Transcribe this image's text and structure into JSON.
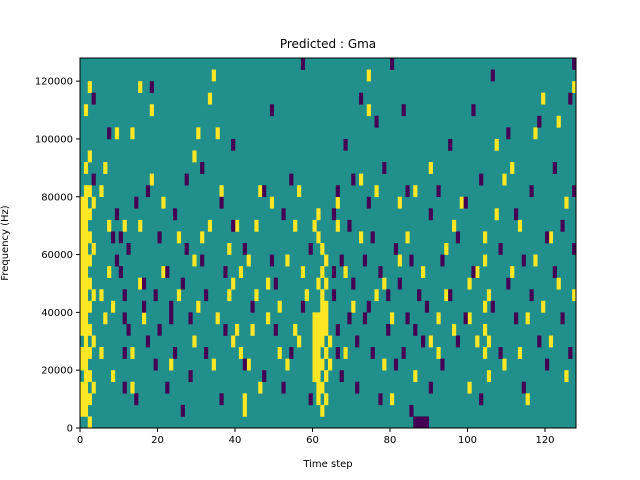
{
  "chart_data": {
    "type": "heatmap",
    "title": "Predicted : Gma",
    "xlabel": "Time step",
    "ylabel": "Frequency (Hz)",
    "xlim": [
      0,
      128
    ],
    "ylim": [
      0,
      128000
    ],
    "x_ticks": [
      0,
      20,
      40,
      60,
      80,
      100,
      120
    ],
    "y_ticks": [
      0,
      20000,
      40000,
      60000,
      80000,
      100000,
      120000
    ],
    "y_tick_labels": [
      "0",
      "20000",
      "40000",
      "60000",
      "80000",
      "100000",
      "120000"
    ],
    "cell_time_steps": 128,
    "cell_freq_rows": 32,
    "colors": {
      "background": "#21908d",
      "high": "#fde725",
      "low": "#440154"
    },
    "high_cells": [
      [
        0,
        1
      ],
      [
        0,
        2
      ],
      [
        0,
        3
      ],
      [
        0,
        5
      ],
      [
        0,
        6
      ],
      [
        0,
        8
      ],
      [
        0,
        9
      ],
      [
        0,
        10
      ],
      [
        0,
        11
      ],
      [
        0,
        12
      ],
      [
        0,
        13
      ],
      [
        0,
        14
      ],
      [
        0,
        15
      ],
      [
        0,
        16
      ],
      [
        0,
        17
      ],
      [
        0,
        18
      ],
      [
        0,
        19
      ],
      [
        1,
        1
      ],
      [
        1,
        2
      ],
      [
        1,
        3
      ],
      [
        1,
        4
      ],
      [
        1,
        5
      ],
      [
        1,
        6
      ],
      [
        1,
        7
      ],
      [
        1,
        8
      ],
      [
        1,
        9
      ],
      [
        1,
        10
      ],
      [
        1,
        11
      ],
      [
        1,
        12
      ],
      [
        1,
        13
      ],
      [
        1,
        14
      ],
      [
        1,
        15
      ],
      [
        1,
        16
      ],
      [
        1,
        17
      ],
      [
        1,
        18
      ],
      [
        1,
        19
      ],
      [
        1,
        20
      ],
      [
        1,
        22
      ],
      [
        1,
        27
      ],
      [
        2,
        0
      ],
      [
        2,
        2
      ],
      [
        2,
        4
      ],
      [
        2,
        6
      ],
      [
        2,
        8
      ],
      [
        2,
        10
      ],
      [
        2,
        12
      ],
      [
        2,
        14
      ],
      [
        2,
        16
      ],
      [
        2,
        18
      ],
      [
        2,
        20
      ],
      [
        2,
        23
      ],
      [
        2,
        29
      ],
      [
        3,
        3
      ],
      [
        3,
        7
      ],
      [
        3,
        11
      ],
      [
        3,
        15
      ],
      [
        3,
        19
      ],
      [
        5,
        6
      ],
      [
        5,
        11
      ],
      [
        5,
        20
      ],
      [
        6,
        9
      ],
      [
        6,
        22
      ],
      [
        7,
        13
      ],
      [
        7,
        17
      ],
      [
        8,
        10
      ],
      [
        8,
        4
      ],
      [
        9,
        25
      ],
      [
        11,
        17
      ],
      [
        13,
        25
      ],
      [
        13,
        3
      ],
      [
        13,
        6
      ],
      [
        15,
        12
      ],
      [
        15,
        17
      ],
      [
        15,
        29
      ],
      [
        16,
        9
      ],
      [
        18,
        21
      ],
      [
        18,
        27
      ],
      [
        21,
        13
      ],
      [
        21,
        19
      ],
      [
        23,
        5
      ],
      [
        25,
        11
      ],
      [
        25,
        16
      ],
      [
        29,
        23
      ],
      [
        29,
        7
      ],
      [
        29,
        14
      ],
      [
        30,
        10
      ],
      [
        30,
        25
      ],
      [
        31,
        16
      ],
      [
        33,
        17
      ],
      [
        33,
        28
      ],
      [
        34,
        30
      ],
      [
        34,
        5
      ],
      [
        35,
        9
      ],
      [
        35,
        25
      ],
      [
        36,
        20
      ],
      [
        38,
        11
      ],
      [
        38,
        15
      ],
      [
        39,
        12
      ],
      [
        39,
        7
      ],
      [
        40,
        8
      ],
      [
        40,
        17
      ],
      [
        41,
        13
      ],
      [
        41,
        6
      ],
      [
        42,
        1
      ],
      [
        42,
        2
      ],
      [
        43,
        14
      ],
      [
        43,
        5
      ],
      [
        44,
        8
      ],
      [
        45,
        11
      ],
      [
        45,
        17
      ],
      [
        46,
        3
      ],
      [
        46,
        20
      ],
      [
        48,
        12
      ],
      [
        48,
        9
      ],
      [
        49,
        19
      ],
      [
        51,
        6
      ],
      [
        51,
        10
      ],
      [
        53,
        14
      ],
      [
        53,
        5
      ],
      [
        55,
        8
      ],
      [
        55,
        17
      ],
      [
        56,
        20
      ],
      [
        56,
        7
      ],
      [
        57,
        13
      ],
      [
        58,
        11
      ],
      [
        60,
        4
      ],
      [
        60,
        5
      ],
      [
        60,
        6
      ],
      [
        60,
        7
      ],
      [
        60,
        8
      ],
      [
        60,
        9
      ],
      [
        60,
        17
      ],
      [
        61,
        2
      ],
      [
        61,
        3
      ],
      [
        61,
        4
      ],
      [
        61,
        5
      ],
      [
        61,
        6
      ],
      [
        61,
        7
      ],
      [
        61,
        8
      ],
      [
        61,
        9
      ],
      [
        61,
        12
      ],
      [
        61,
        16
      ],
      [
        61,
        18
      ],
      [
        62,
        1
      ],
      [
        62,
        3
      ],
      [
        62,
        5
      ],
      [
        62,
        7
      ],
      [
        62,
        8
      ],
      [
        62,
        9
      ],
      [
        62,
        10
      ],
      [
        62,
        11
      ],
      [
        62,
        13
      ],
      [
        62,
        15
      ],
      [
        63,
        2
      ],
      [
        63,
        4
      ],
      [
        63,
        6
      ],
      [
        63,
        8
      ],
      [
        63,
        9
      ],
      [
        63,
        10
      ],
      [
        63,
        12
      ],
      [
        63,
        14
      ],
      [
        64,
        5
      ],
      [
        64,
        7
      ],
      [
        66,
        17
      ],
      [
        66,
        19
      ],
      [
        68,
        13
      ],
      [
        68,
        6
      ],
      [
        70,
        10
      ],
      [
        72,
        16
      ],
      [
        72,
        21
      ],
      [
        74,
        27
      ],
      [
        74,
        30
      ],
      [
        76,
        20
      ],
      [
        76,
        11
      ],
      [
        78,
        5
      ],
      [
        78,
        12
      ],
      [
        80,
        2
      ],
      [
        80,
        9
      ],
      [
        82,
        19
      ],
      [
        82,
        14
      ],
      [
        84,
        16
      ],
      [
        86,
        20
      ],
      [
        86,
        4
      ],
      [
        88,
        13
      ],
      [
        90,
        7
      ],
      [
        90,
        22
      ],
      [
        92,
        6
      ],
      [
        92,
        9
      ],
      [
        94,
        11
      ],
      [
        94,
        15
      ],
      [
        96,
        8
      ],
      [
        96,
        17
      ],
      [
        98,
        19
      ],
      [
        100,
        3
      ],
      [
        100,
        12
      ],
      [
        100,
        9
      ],
      [
        102,
        7
      ],
      [
        102,
        13
      ],
      [
        104,
        6
      ],
      [
        104,
        8
      ],
      [
        104,
        10
      ],
      [
        104,
        14
      ],
      [
        104,
        16
      ],
      [
        105,
        4
      ],
      [
        105,
        7
      ],
      [
        105,
        11
      ],
      [
        107,
        18
      ],
      [
        107,
        24
      ],
      [
        109,
        5
      ],
      [
        109,
        21
      ],
      [
        111,
        13
      ],
      [
        111,
        22
      ],
      [
        113,
        6
      ],
      [
        113,
        17
      ],
      [
        115,
        2
      ],
      [
        115,
        9
      ],
      [
        117,
        14
      ],
      [
        117,
        25
      ],
      [
        119,
        10
      ],
      [
        119,
        28
      ],
      [
        121,
        7
      ],
      [
        121,
        16
      ],
      [
        123,
        12
      ],
      [
        123,
        26
      ],
      [
        125,
        19
      ],
      [
        125,
        4
      ],
      [
        127,
        11
      ],
      [
        127,
        29
      ]
    ],
    "low_cells": [
      [
        3,
        21
      ],
      [
        3,
        28
      ],
      [
        7,
        25
      ],
      [
        8,
        16
      ],
      [
        9,
        14
      ],
      [
        9,
        18
      ],
      [
        10,
        13
      ],
      [
        10,
        16
      ],
      [
        11,
        3
      ],
      [
        11,
        6
      ],
      [
        11,
        9
      ],
      [
        11,
        11
      ],
      [
        12,
        15
      ],
      [
        12,
        8
      ],
      [
        14,
        2
      ],
      [
        14,
        19
      ],
      [
        16,
        10
      ],
      [
        16,
        12
      ],
      [
        17,
        7
      ],
      [
        17,
        20
      ],
      [
        18,
        29
      ],
      [
        19,
        5
      ],
      [
        19,
        11
      ],
      [
        20,
        8
      ],
      [
        20,
        16
      ],
      [
        22,
        3
      ],
      [
        22,
        13
      ],
      [
        23,
        10
      ],
      [
        23,
        9
      ],
      [
        24,
        18
      ],
      [
        24,
        6
      ],
      [
        26,
        12
      ],
      [
        26,
        1
      ],
      [
        27,
        15
      ],
      [
        27,
        21
      ],
      [
        28,
        9
      ],
      [
        28,
        4
      ],
      [
        31,
        22
      ],
      [
        31,
        14
      ],
      [
        32,
        6
      ],
      [
        32,
        11
      ],
      [
        36,
        2
      ],
      [
        36,
        19
      ],
      [
        37,
        13
      ],
      [
        37,
        8
      ],
      [
        39,
        17
      ],
      [
        39,
        24
      ],
      [
        42,
        5
      ],
      [
        42,
        15
      ],
      [
        44,
        10
      ],
      [
        47,
        20
      ],
      [
        47,
        4
      ],
      [
        49,
        27
      ],
      [
        49,
        14
      ],
      [
        50,
        8
      ],
      [
        50,
        12
      ],
      [
        52,
        18
      ],
      [
        52,
        3
      ],
      [
        54,
        6
      ],
      [
        54,
        21
      ],
      [
        57,
        10
      ],
      [
        57,
        31
      ],
      [
        59,
        15
      ],
      [
        59,
        2
      ],
      [
        65,
        11
      ],
      [
        65,
        13
      ],
      [
        65,
        18
      ],
      [
        66,
        8
      ],
      [
        66,
        20
      ],
      [
        66,
        6
      ],
      [
        67,
        14
      ],
      [
        67,
        4
      ],
      [
        68,
        24
      ],
      [
        69,
        9
      ],
      [
        69,
        17
      ],
      [
        70,
        21
      ],
      [
        70,
        12
      ],
      [
        71,
        3
      ],
      [
        71,
        7
      ],
      [
        72,
        28
      ],
      [
        73,
        14
      ],
      [
        73,
        9
      ],
      [
        74,
        10
      ],
      [
        74,
        19
      ],
      [
        75,
        16
      ],
      [
        75,
        6
      ],
      [
        76,
        26
      ],
      [
        77,
        2
      ],
      [
        77,
        13
      ],
      [
        78,
        22
      ],
      [
        79,
        8
      ],
      [
        79,
        11
      ],
      [
        80,
        31
      ],
      [
        81,
        5
      ],
      [
        81,
        15
      ],
      [
        82,
        12
      ],
      [
        83,
        6
      ],
      [
        83,
        27
      ],
      [
        84,
        20
      ],
      [
        84,
        9
      ],
      [
        85,
        1
      ],
      [
        85,
        14
      ],
      [
        86,
        0
      ],
      [
        86,
        8
      ],
      [
        87,
        0
      ],
      [
        87,
        11
      ],
      [
        88,
        0
      ],
      [
        88,
        7
      ],
      [
        89,
        0
      ],
      [
        89,
        10
      ],
      [
        90,
        3
      ],
      [
        90,
        18
      ],
      [
        92,
        20
      ],
      [
        93,
        14
      ],
      [
        93,
        5
      ],
      [
        95,
        11
      ],
      [
        95,
        24
      ],
      [
        97,
        7
      ],
      [
        97,
        16
      ],
      [
        99,
        9
      ],
      [
        99,
        19
      ],
      [
        101,
        13
      ],
      [
        101,
        27
      ],
      [
        103,
        2
      ],
      [
        103,
        21
      ],
      [
        106,
        10
      ],
      [
        106,
        30
      ],
      [
        108,
        15
      ],
      [
        108,
        6
      ],
      [
        110,
        25
      ],
      [
        110,
        12
      ],
      [
        112,
        9
      ],
      [
        112,
        18
      ],
      [
        114,
        14
      ],
      [
        114,
        3
      ],
      [
        116,
        20
      ],
      [
        116,
        11
      ],
      [
        118,
        7
      ],
      [
        118,
        26
      ],
      [
        120,
        16
      ],
      [
        120,
        5
      ],
      [
        122,
        13
      ],
      [
        122,
        22
      ],
      [
        124,
        9
      ],
      [
        124,
        17
      ],
      [
        126,
        6
      ],
      [
        126,
        28
      ],
      [
        127,
        15
      ],
      [
        127,
        20
      ],
      [
        127,
        31
      ]
    ]
  }
}
